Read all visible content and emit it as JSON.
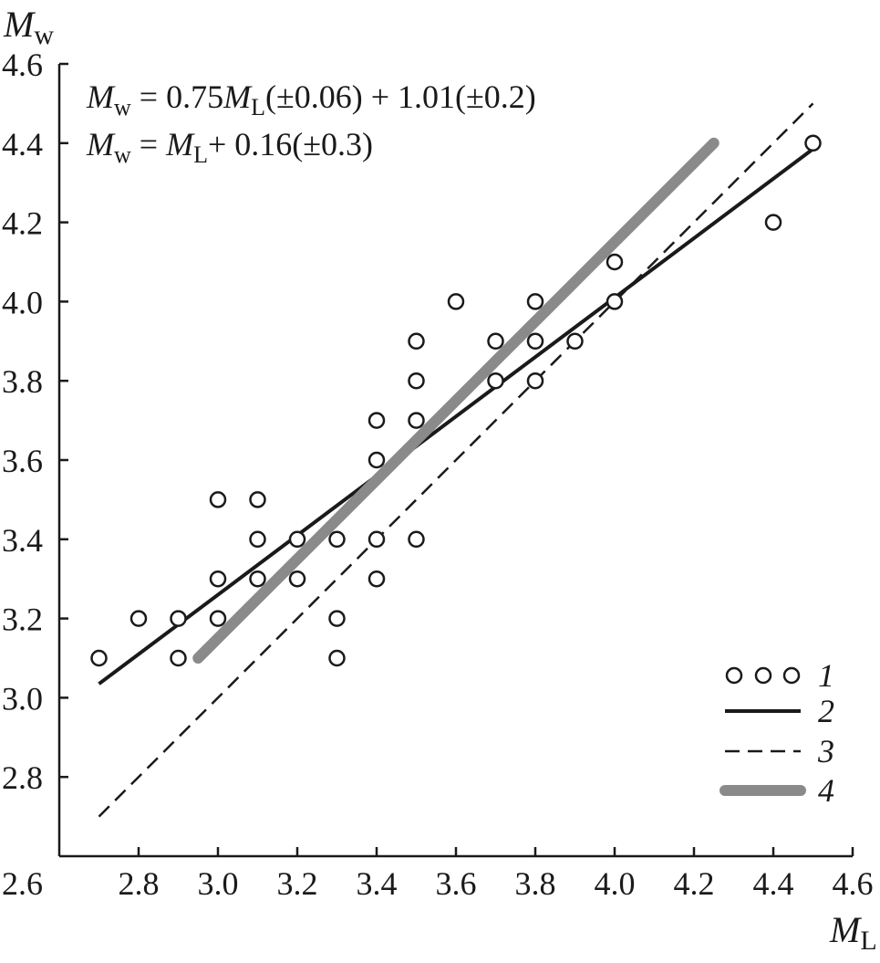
{
  "chart_data": {
    "type": "scatter",
    "xlabel": {
      "main": "M",
      "sub": "L"
    },
    "ylabel": {
      "main": "M",
      "sub": "w"
    },
    "xlim": [
      2.6,
      4.6
    ],
    "ylim": [
      2.6,
      4.6
    ],
    "x_ticks": [
      "2.6",
      "2.8",
      "3.0",
      "3.2",
      "3.4",
      "3.6",
      "3.8",
      "4.0",
      "4.2",
      "4.4",
      "4.6"
    ],
    "y_ticks": [
      "2.8",
      "3.0",
      "3.2",
      "3.4",
      "3.6",
      "3.8",
      "4.0",
      "4.2",
      "4.4",
      "4.6"
    ],
    "grid": false,
    "legend_position": "bottom-right",
    "equations": [
      {
        "lhs": "M",
        "lhs_sub": "w",
        "eq": " = 0.75",
        "var": "M",
        "var_sub": "L",
        "rest": "(±0.06) + 1.01(±0.2)"
      },
      {
        "lhs": "M",
        "lhs_sub": "w",
        "eq": " = ",
        "var": "M",
        "var_sub": "L",
        "rest": "+ 0.16(±0.3)"
      }
    ],
    "series": [
      {
        "name": "1",
        "kind": "points",
        "points": [
          [
            2.7,
            3.1
          ],
          [
            2.8,
            3.2
          ],
          [
            2.9,
            3.2
          ],
          [
            2.9,
            3.1
          ],
          [
            3.0,
            3.5
          ],
          [
            3.0,
            3.3
          ],
          [
            3.0,
            3.2
          ],
          [
            3.1,
            3.5
          ],
          [
            3.1,
            3.4
          ],
          [
            3.1,
            3.3
          ],
          [
            3.2,
            3.4
          ],
          [
            3.2,
            3.3
          ],
          [
            3.3,
            3.4
          ],
          [
            3.3,
            3.2
          ],
          [
            3.3,
            3.1
          ],
          [
            3.4,
            3.7
          ],
          [
            3.4,
            3.6
          ],
          [
            3.4,
            3.4
          ],
          [
            3.4,
            3.3
          ],
          [
            3.5,
            3.9
          ],
          [
            3.5,
            3.8
          ],
          [
            3.5,
            3.7
          ],
          [
            3.5,
            3.4
          ],
          [
            3.6,
            4.0
          ],
          [
            3.7,
            3.9
          ],
          [
            3.7,
            3.8
          ],
          [
            3.8,
            4.0
          ],
          [
            3.8,
            3.9
          ],
          [
            3.8,
            3.8
          ],
          [
            3.9,
            3.9
          ],
          [
            4.0,
            4.1
          ],
          [
            4.0,
            4.0
          ],
          [
            4.4,
            4.2
          ],
          [
            4.5,
            4.4
          ]
        ]
      },
      {
        "name": "2",
        "kind": "line",
        "style": "solid",
        "color": "#1a1a1a",
        "x": [
          2.7,
          4.5
        ],
        "y": [
          3.035,
          4.385
        ]
      },
      {
        "name": "3",
        "kind": "line",
        "style": "dashed",
        "color": "#1a1a1a",
        "x": [
          2.7,
          4.5
        ],
        "y": [
          2.7,
          4.5
        ]
      },
      {
        "name": "4",
        "kind": "line",
        "style": "thick",
        "color": "#8a8a8a",
        "x": [
          2.95,
          4.25
        ],
        "y": [
          3.1,
          4.4
        ]
      }
    ]
  }
}
